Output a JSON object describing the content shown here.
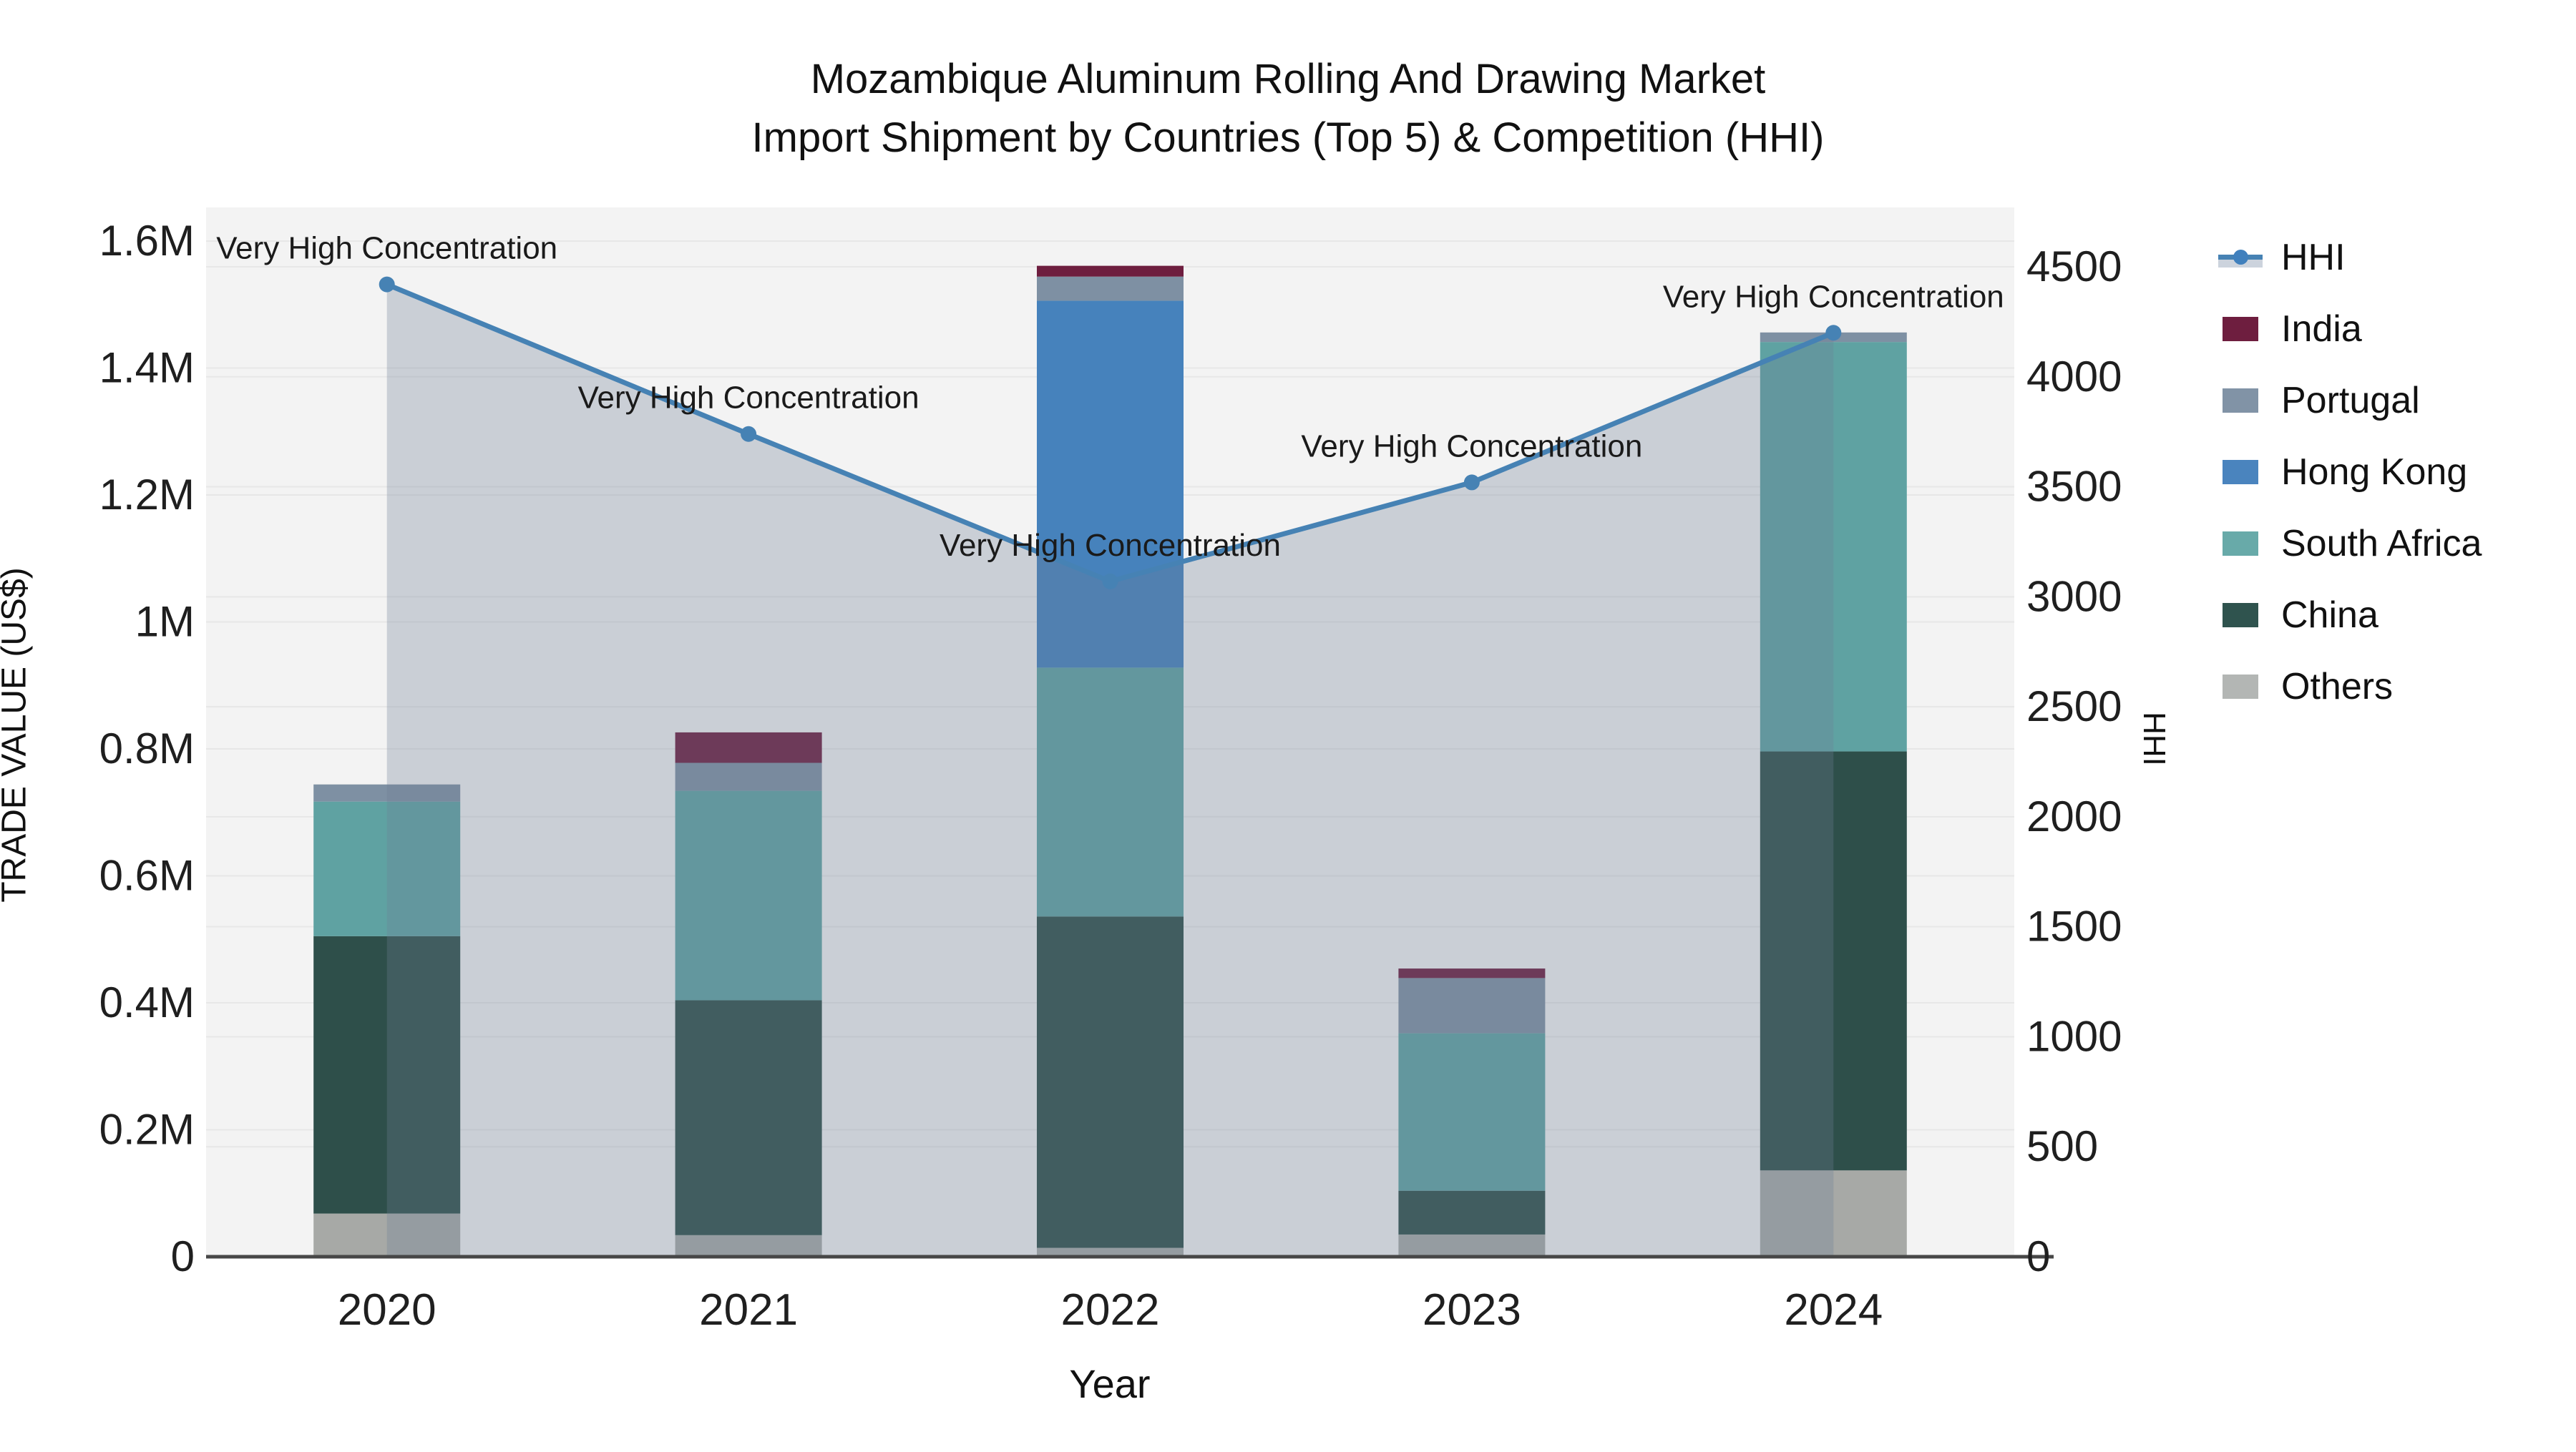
{
  "title": {
    "line1": "Mozambique Aluminum Rolling And Drawing Market",
    "line2": "Import Shipment by Countries (Top 5) & Competition (HHI)"
  },
  "axes": {
    "x": {
      "title": "Year",
      "tick_labels": [
        "2020",
        "2021",
        "2022",
        "2023",
        "2024"
      ]
    },
    "y_left": {
      "title": "TRADE VALUE (US$)",
      "tick_labels": [
        "0",
        "0.2M",
        "0.4M",
        "0.6M",
        "0.8M",
        "1M",
        "1.2M",
        "1.4M",
        "1.6M"
      ],
      "max": 1600000
    },
    "y_right": {
      "title": "HHI",
      "tick_labels": [
        "0",
        "500",
        "1000",
        "1500",
        "2000",
        "2500",
        "3000",
        "3500",
        "4000",
        "4500"
      ],
      "max": 4500
    }
  },
  "chart_data": {
    "type": "bar+line",
    "categories": [
      "2020",
      "2021",
      "2022",
      "2023",
      "2024"
    ],
    "bar_stack_order_note": "bottom to top",
    "series": [
      {
        "name": "Others",
        "color": "#a7a9a6",
        "values": [
          68000,
          34000,
          14000,
          35000,
          136000
        ]
      },
      {
        "name": "China",
        "color": "#2e4f4a",
        "values": [
          437000,
          370000,
          522000,
          69000,
          660000
        ]
      },
      {
        "name": "South Africa",
        "color": "#5fa2a2",
        "values": [
          212000,
          330000,
          392000,
          248000,
          645000
        ]
      },
      {
        "name": "Hong Kong",
        "color": "#4682bc",
        "values": [
          0,
          0,
          578000,
          0,
          0
        ]
      },
      {
        "name": "Portugal",
        "color": "#7e90a3",
        "values": [
          27000,
          44000,
          38000,
          87000,
          15000
        ]
      },
      {
        "name": "India",
        "color": "#6e1e3f",
        "values": [
          0,
          48000,
          17000,
          15000,
          0
        ]
      }
    ],
    "line_series": {
      "name": "HHI",
      "color": "#4682b4",
      "fill_color": "rgba(108,125,150,0.30)",
      "values": [
        4420,
        3740,
        3070,
        3520,
        4200
      ]
    },
    "annotations": [
      "Very High Concentration",
      "Very High Concentration",
      "Very High Concentration",
      "Very High Concentration",
      "Very High Concentration"
    ],
    "ylim_left": [
      0,
      1600000
    ],
    "ylim_right": [
      0,
      4500
    ],
    "grid": true,
    "plot_bg": "#f3f3f3",
    "grid_color": "#e7e7e7",
    "axis_line_color": "#474747",
    "legend_position": "right"
  },
  "legend": {
    "items": [
      {
        "label": "HHI",
        "type": "line",
        "color": "#4682b4"
      },
      {
        "label": "India",
        "type": "box",
        "color": "#6e1e3f"
      },
      {
        "label": "Portugal",
        "type": "box",
        "color": "#8193a6"
      },
      {
        "label": "Hong Kong",
        "type": "box",
        "color": "#4a84be"
      },
      {
        "label": "South Africa",
        "type": "box",
        "color": "#68aaa9"
      },
      {
        "label": "China",
        "type": "box",
        "color": "#2f534e"
      },
      {
        "label": "Others",
        "type": "box",
        "color": "#b3b6b4"
      }
    ]
  }
}
